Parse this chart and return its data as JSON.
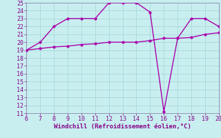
{
  "xlabel": "Windchill (Refroidissement éolien,°C)",
  "x_line1": [
    6,
    7,
    8,
    9,
    10,
    11,
    12,
    13,
    14,
    15,
    16,
    17,
    18,
    19,
    20
  ],
  "y_line1": [
    19,
    20,
    22,
    23,
    23,
    23,
    25,
    25,
    25,
    23.8,
    11.2,
    20.5,
    23,
    23,
    22
  ],
  "x_line2": [
    6,
    7,
    8,
    9,
    10,
    11,
    12,
    13,
    14,
    15,
    16,
    17,
    18,
    19,
    20
  ],
  "y_line2": [
    19,
    19.2,
    19.4,
    19.5,
    19.7,
    19.8,
    20,
    20,
    20,
    20.2,
    20.5,
    20.5,
    20.6,
    21,
    21.2
  ],
  "xlim": [
    6,
    20
  ],
  "ylim": [
    11,
    25
  ],
  "xticks": [
    6,
    7,
    8,
    9,
    10,
    11,
    12,
    13,
    14,
    15,
    16,
    17,
    18,
    19,
    20
  ],
  "yticks": [
    11,
    12,
    13,
    14,
    15,
    16,
    17,
    18,
    19,
    20,
    21,
    22,
    23,
    24,
    25
  ],
  "line_color": "#aa00aa",
  "bg_color": "#c8eef0",
  "grid_color": "#a8d8d8",
  "marker": ".",
  "marker_size": 4,
  "line_width": 1.0,
  "font_color": "#880088",
  "xlabel_fontsize": 6.5,
  "tick_fontsize": 6.0,
  "spine_color": "#8888aa"
}
